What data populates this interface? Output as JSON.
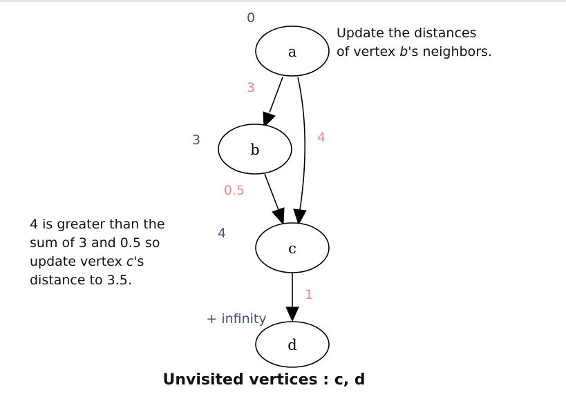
{
  "nodes": [
    {
      "id": "a",
      "label": "a",
      "distance": "0"
    },
    {
      "id": "b",
      "label": "b",
      "distance": "3"
    },
    {
      "id": "c",
      "label": "c",
      "distance": "4"
    },
    {
      "id": "d",
      "label": "d",
      "distance": "+ infinity"
    }
  ],
  "edges": [
    {
      "from": "a",
      "to": "b",
      "weight": "3"
    },
    {
      "from": "a",
      "to": "c",
      "weight": "4"
    },
    {
      "from": "b",
      "to": "c",
      "weight": "0.5"
    },
    {
      "from": "c",
      "to": "d",
      "weight": "1"
    }
  ],
  "notes": {
    "top_line1": "Update the distances",
    "top_line2_prefix": "of vertex ",
    "top_line2_var": "b",
    "top_line2_suffix": "'s neighbors.",
    "left_line1": "4 is greater than the",
    "left_line2": "sum of 3 and 0.5 so",
    "left_line3_prefix": "update vertex ",
    "left_line3_var": "c",
    "left_line3_suffix": "'s",
    "left_line4": "distance to 3.5."
  },
  "footer": {
    "unvisited": "Unvisited vertices : c, d"
  },
  "colors": {
    "distance_label": "#3e5379",
    "edge_weight": "#f08888",
    "node_stroke": "#000000"
  }
}
